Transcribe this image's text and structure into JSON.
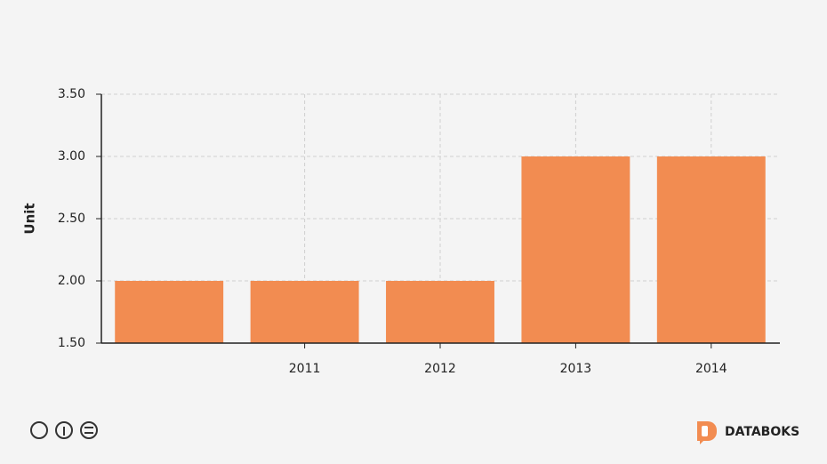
{
  "chart_data": {
    "type": "bar",
    "y_label": "Unit",
    "categories": [
      null,
      "2011",
      "2012",
      "2013",
      "2014"
    ],
    "values": [
      2,
      2,
      2,
      3,
      3
    ],
    "color": "#f28c51",
    "ylim": [
      1.5,
      3.5
    ],
    "yticks": [
      {
        "value": 1.5,
        "label": "1.50"
      },
      {
        "value": 2,
        "label": "2.00"
      },
      {
        "value": 2.5,
        "label": "2.50"
      },
      {
        "value": 3,
        "label": "3.00"
      },
      {
        "value": 3.5,
        "label": "3.50"
      }
    ],
    "grid": true
  },
  "footer": {
    "brand": "DATABOKS"
  }
}
